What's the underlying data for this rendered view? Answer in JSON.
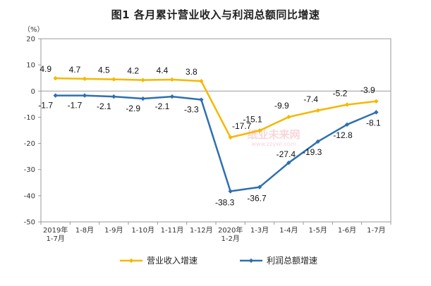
{
  "chart_data": {
    "type": "line",
    "title": "图1  各月累计营业收入与利润总额同比增速",
    "unit_label": "（%）",
    "categories": [
      [
        "2019年",
        "1-7月"
      ],
      [
        "1-8月"
      ],
      [
        "1-9月"
      ],
      [
        "1-10月"
      ],
      [
        "1-11月"
      ],
      [
        "1-12月"
      ],
      [
        "2020年",
        "1-2月"
      ],
      [
        "1-3月"
      ],
      [
        "1-4月"
      ],
      [
        "1-5月"
      ],
      [
        "1-6月"
      ],
      [
        "1-7月"
      ]
    ],
    "ylim": [
      -50,
      20
    ],
    "yticks": [
      20,
      10,
      0,
      -10,
      -20,
      -30,
      -40,
      -50
    ],
    "grid": false,
    "legend_position": "bottom",
    "series": [
      {
        "name": "营业收入增速",
        "color": "#f5b800",
        "values": [
          4.9,
          4.7,
          4.5,
          4.2,
          4.4,
          3.8,
          -17.7,
          -15.1,
          -9.9,
          -7.4,
          -5.2,
          -3.9
        ],
        "labels": [
          "4.9",
          "4.7",
          "4.5",
          "4.2",
          "4.4",
          "3.8",
          "-17.7",
          "-15.1",
          "-9.9",
          "-7.4",
          "-5.2",
          "-3.9"
        ]
      },
      {
        "name": "利润总额增速",
        "color": "#2e6fb0",
        "values": [
          -1.7,
          -1.7,
          -2.1,
          -2.9,
          -2.1,
          -3.3,
          -38.3,
          -36.7,
          -27.4,
          -19.3,
          -12.8,
          -8.1
        ],
        "labels": [
          "-1.7",
          "-1.7",
          "-2.1",
          "-2.9",
          "-2.1",
          "-3.3",
          "-38.3",
          "-36.7",
          "-27.4",
          "-19.3",
          "-12.8",
          "-8.1"
        ]
      }
    ]
  },
  "watermark": {
    "text": "纸业未来网",
    "url_text": "www.zzywl.com"
  }
}
